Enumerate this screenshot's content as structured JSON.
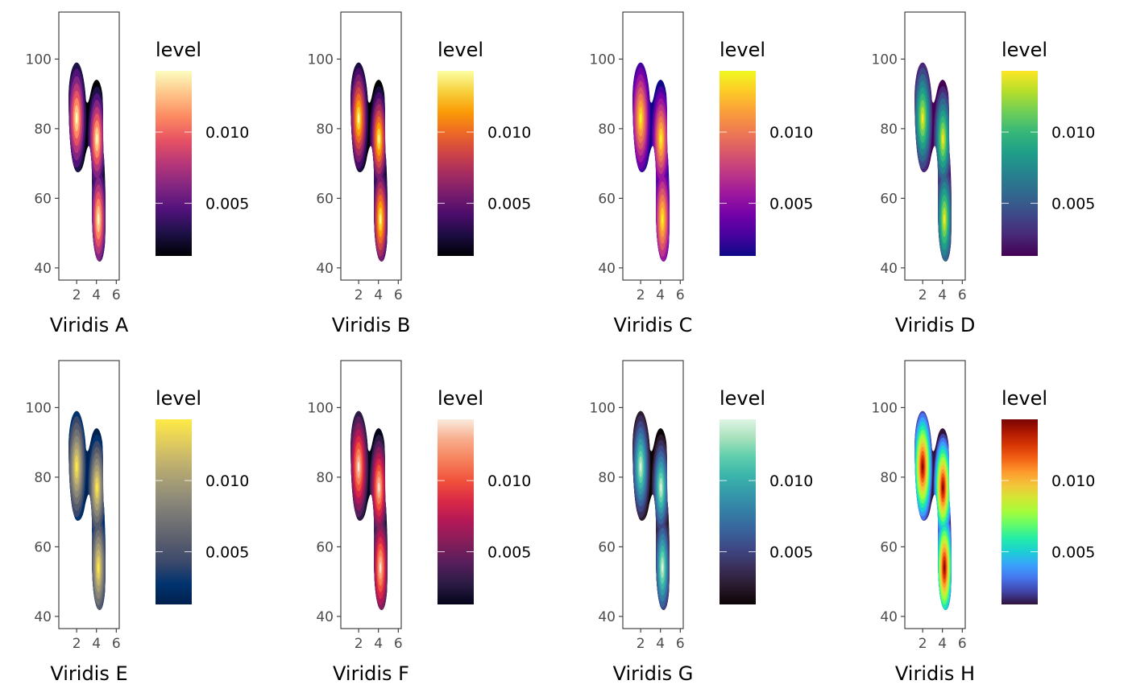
{
  "chart_data": [
    {
      "type": "area",
      "subtype": "filled-density-contour",
      "xlabel": "Viridis A",
      "legend": {
        "title": "level",
        "labels": [
          "0.005",
          "0.010"
        ],
        "values": [
          0.005,
          0.01
        ],
        "range": [
          0.0013,
          0.0143
        ],
        "placement": "right",
        "colors": [
          "#000004",
          "#1d1147",
          "#51127c",
          "#822681",
          "#b73779",
          "#e75263",
          "#fc8961",
          "#fec488",
          "#fcfdbf"
        ]
      },
      "x_ticks": [
        2,
        4,
        6
      ],
      "y_ticks": [
        40,
        60,
        80,
        100
      ],
      "xlim": [
        0.2,
        6.3
      ],
      "ylim": [
        36.5,
        113.5
      ],
      "grid": false
    },
    {
      "type": "area",
      "subtype": "filled-density-contour",
      "xlabel": "Viridis B",
      "legend": {
        "title": "level",
        "labels": [
          "0.005",
          "0.010"
        ],
        "values": [
          0.005,
          0.01
        ],
        "range": [
          0.0013,
          0.0143
        ],
        "placement": "right",
        "colors": [
          "#000004",
          "#1b0c41",
          "#4a0c6b",
          "#781c6d",
          "#a52c60",
          "#cf4446",
          "#ed6925",
          "#fb9b06",
          "#f7d13d",
          "#fcffa4"
        ]
      },
      "x_ticks": [
        2,
        4,
        6
      ],
      "y_ticks": [
        40,
        60,
        80,
        100
      ],
      "xlim": [
        0.2,
        6.3
      ],
      "ylim": [
        36.5,
        113.5
      ],
      "grid": false
    },
    {
      "type": "area",
      "subtype": "filled-density-contour",
      "xlabel": "Viridis C",
      "legend": {
        "title": "level",
        "labels": [
          "0.005",
          "0.010"
        ],
        "values": [
          0.005,
          0.01
        ],
        "range": [
          0.0013,
          0.0143
        ],
        "placement": "right",
        "colors": [
          "#0d0887",
          "#47039f",
          "#7301a8",
          "#9c179e",
          "#bd3786",
          "#d8576b",
          "#ed7953",
          "#fa9e3b",
          "#fdca26",
          "#f0f921"
        ]
      },
      "x_ticks": [
        2,
        4,
        6
      ],
      "y_ticks": [
        40,
        60,
        80,
        100
      ],
      "xlim": [
        0.2,
        6.3
      ],
      "ylim": [
        36.5,
        113.5
      ],
      "grid": false
    },
    {
      "type": "area",
      "subtype": "filled-density-contour",
      "xlabel": "Viridis D",
      "legend": {
        "title": "level",
        "labels": [
          "0.005",
          "0.010"
        ],
        "values": [
          0.005,
          0.01
        ],
        "range": [
          0.0013,
          0.0143
        ],
        "placement": "right",
        "colors": [
          "#440154",
          "#482878",
          "#3e4989",
          "#31688e",
          "#26828e",
          "#1f9e89",
          "#35b779",
          "#6ece58",
          "#b5de2b",
          "#fde725"
        ]
      },
      "x_ticks": [
        2,
        4,
        6
      ],
      "y_ticks": [
        40,
        60,
        80,
        100
      ],
      "xlim": [
        0.2,
        6.3
      ],
      "ylim": [
        36.5,
        113.5
      ],
      "grid": false
    },
    {
      "type": "area",
      "subtype": "filled-density-contour",
      "xlabel": "Viridis E",
      "legend": {
        "title": "level",
        "labels": [
          "0.005",
          "0.010"
        ],
        "values": [
          0.005,
          0.01
        ],
        "range": [
          0.0013,
          0.0143
        ],
        "placement": "right",
        "colors": [
          "#00204d",
          "#00336f",
          "#39486b",
          "#575c6d",
          "#707173",
          "#8a8779",
          "#a69d75",
          "#c4b56c",
          "#e4cf5b",
          "#ffea46"
        ]
      },
      "x_ticks": [
        2,
        4,
        6
      ],
      "y_ticks": [
        40,
        60,
        80,
        100
      ],
      "xlim": [
        0.2,
        6.3
      ],
      "ylim": [
        36.5,
        113.5
      ],
      "grid": false
    },
    {
      "type": "area",
      "subtype": "filled-density-contour",
      "xlabel": "Viridis F",
      "legend": {
        "title": "level",
        "labels": [
          "0.005",
          "0.010"
        ],
        "values": [
          0.005,
          0.01
        ],
        "range": [
          0.0013,
          0.0143
        ],
        "placement": "right",
        "colors": [
          "#03051a",
          "#2b1b44",
          "#561e5c",
          "#841e5a",
          "#b11857",
          "#d92847",
          "#f0513b",
          "#f6805b",
          "#f8ab8a",
          "#faebdd"
        ]
      },
      "x_ticks": [
        2,
        4,
        6
      ],
      "y_ticks": [
        40,
        60,
        80,
        100
      ],
      "xlim": [
        0.2,
        6.3
      ],
      "ylim": [
        36.5,
        113.5
      ],
      "grid": false
    },
    {
      "type": "area",
      "subtype": "filled-density-contour",
      "xlabel": "Viridis G",
      "legend": {
        "title": "level",
        "labels": [
          "0.005",
          "0.010"
        ],
        "values": [
          0.005,
          0.01
        ],
        "range": [
          0.0013,
          0.0143
        ],
        "placement": "right",
        "colors": [
          "#0b0405",
          "#2a1b2e",
          "#3a2f5a",
          "#3e4785",
          "#38639c",
          "#357ea6",
          "#3599aa",
          "#3bb5ab",
          "#60cfac",
          "#a8e1bc",
          "#def5e5"
        ]
      },
      "x_ticks": [
        2,
        4,
        6
      ],
      "y_ticks": [
        40,
        60,
        80,
        100
      ],
      "xlim": [
        0.2,
        6.3
      ],
      "ylim": [
        36.5,
        113.5
      ],
      "grid": false
    },
    {
      "type": "area",
      "subtype": "filled-density-contour",
      "xlabel": "Viridis H",
      "legend": {
        "title": "level",
        "labels": [
          "0.005",
          "0.010"
        ],
        "values": [
          0.005,
          0.01
        ],
        "range": [
          0.0013,
          0.0143
        ],
        "placement": "right",
        "colors": [
          "#30123b",
          "#4145ab",
          "#4675ed",
          "#39a2fc",
          "#1bcfd4",
          "#24eca6",
          "#61fc6c",
          "#a4fc3b",
          "#d1e834",
          "#f3c63a",
          "#fe9b2d",
          "#f36315",
          "#d93806",
          "#b11901",
          "#7a0403"
        ]
      },
      "x_ticks": [
        2,
        4,
        6
      ],
      "y_ticks": [
        40,
        60,
        80,
        100
      ],
      "xlim": [
        0.2,
        6.3
      ],
      "ylim": [
        36.5,
        113.5
      ],
      "grid": false
    }
  ]
}
